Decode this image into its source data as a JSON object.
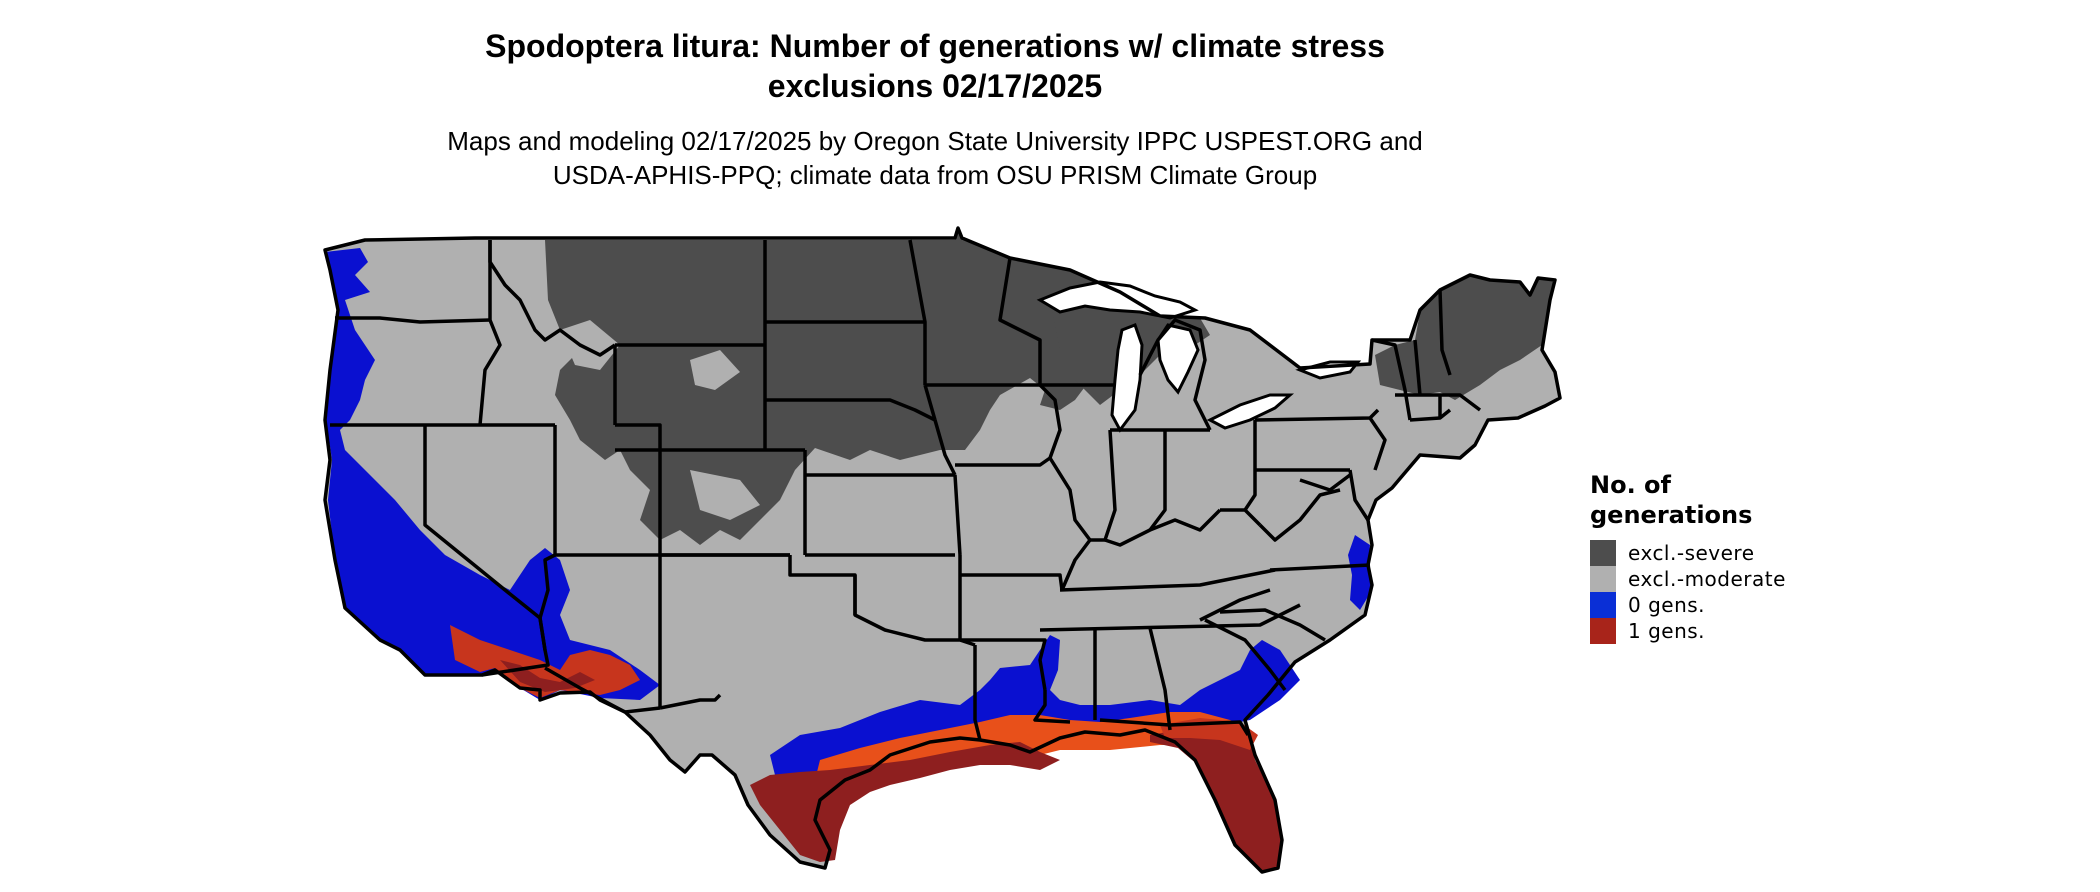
{
  "title_line1": "Spodoptera litura: Number of generations w/ climate stress",
  "title_line2": "exclusions 02/17/2025",
  "subtitle_line1": "Maps and modeling 02/17/2025 by Oregon State University IPPC USPEST.ORG and",
  "subtitle_line2": "USDA-APHIS-PPQ; climate data from OSU PRISM Climate Group",
  "legend": {
    "title_line1": "No. of",
    "title_line2": "generations",
    "items": [
      {
        "label": "excl.-severe",
        "color": "#4d4d4d"
      },
      {
        "label": "excl.-moderate",
        "color": "#b0b0b0"
      },
      {
        "label": "0 gens.",
        "color": "#0a2fd6"
      },
      {
        "label": "1 gens.",
        "color": "#a8241a"
      }
    ]
  },
  "colors": {
    "severe": "#4d4d4d",
    "moderate": "#b0b0b0",
    "zero_gens": "#0a10d0",
    "one_gen_dark": "#8e1f1f",
    "one_gen_mid": "#c7351d",
    "one_gen_light": "#e8501a",
    "state_border": "#000000",
    "water": "#ffffff"
  }
}
